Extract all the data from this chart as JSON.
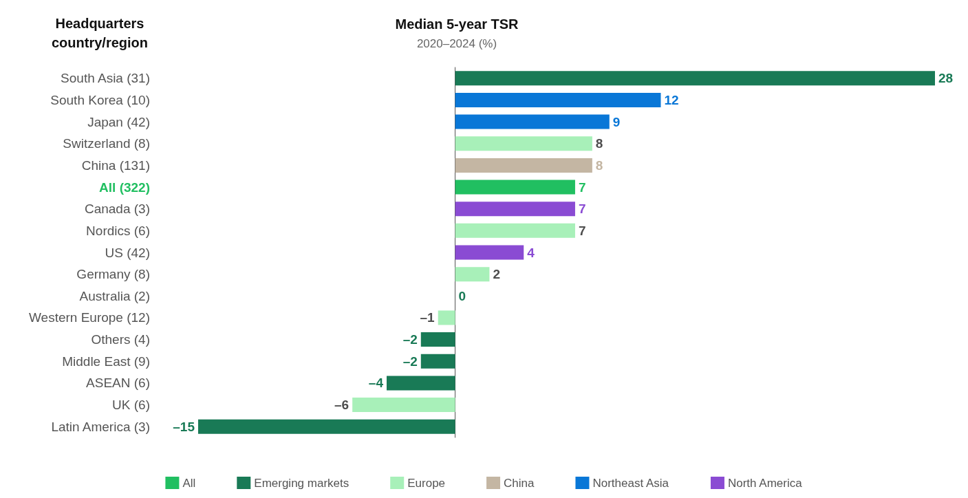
{
  "chart_data": {
    "type": "bar",
    "orientation": "horizontal",
    "title": "Median 5-year TSR",
    "subtitle": "2020–2024 (%)",
    "ylabel": "Headquarters country/region",
    "categories": [
      "South Asia (31)",
      "South Korea (10)",
      "Japan (42)",
      "Switzerland (8)",
      "China (131)",
      "All (322)",
      "Canada (3)",
      "Nordics (6)",
      "US (42)",
      "Germany (8)",
      "Australia (2)",
      "Western Europe (12)",
      "Others (4)",
      "Middle East (9)",
      "ASEAN (6)",
      "UK (6)",
      "Latin America (3)"
    ],
    "series": [
      {
        "name": "All",
        "color": "#21bf61",
        "values": [
          null,
          null,
          null,
          null,
          null,
          7,
          null,
          null,
          null,
          null,
          null,
          null,
          null,
          null,
          null,
          null,
          null
        ],
        "value_labels": [
          null,
          null,
          null,
          null,
          null,
          "7",
          null,
          null,
          null,
          null,
          null,
          null,
          null,
          null,
          null,
          null,
          null
        ]
      },
      {
        "name": "Emerging markets",
        "color": "#197a56",
        "values": [
          28,
          null,
          null,
          null,
          null,
          null,
          null,
          null,
          null,
          null,
          0,
          null,
          -2,
          -2,
          -4,
          null,
          -15
        ],
        "value_labels": [
          "28",
          null,
          null,
          null,
          null,
          null,
          null,
          null,
          null,
          null,
          "0",
          null,
          "–2",
          "–2",
          "–4",
          null,
          "–15"
        ]
      },
      {
        "name": "Europe",
        "color": "#a8f0b9",
        "values": [
          null,
          null,
          null,
          8,
          null,
          null,
          null,
          7,
          null,
          2,
          null,
          -1,
          null,
          null,
          null,
          -6,
          null
        ],
        "value_labels": [
          null,
          null,
          null,
          "8",
          null,
          null,
          null,
          "7",
          null,
          "2",
          null,
          "–1",
          null,
          null,
          null,
          "–6",
          null
        ]
      },
      {
        "name": "China",
        "color": "#c4b6a3",
        "values": [
          null,
          null,
          null,
          null,
          8,
          null,
          null,
          null,
          null,
          null,
          null,
          null,
          null,
          null,
          null,
          null,
          null
        ],
        "value_labels": [
          null,
          null,
          null,
          null,
          "8",
          null,
          null,
          null,
          null,
          null,
          null,
          null,
          null,
          null,
          null,
          null,
          null
        ]
      },
      {
        "name": "Northeast Asia",
        "color": "#0977d7",
        "values": [
          null,
          12,
          9,
          null,
          null,
          null,
          null,
          null,
          null,
          null,
          null,
          null,
          null,
          null,
          null,
          null,
          null
        ],
        "value_labels": [
          null,
          "12",
          "9",
          null,
          null,
          null,
          null,
          null,
          null,
          null,
          null,
          null,
          null,
          null,
          null,
          null,
          null
        ]
      },
      {
        "name": "North America",
        "color": "#8a4bd3",
        "values": [
          null,
          null,
          null,
          null,
          null,
          null,
          7,
          null,
          4,
          null,
          null,
          null,
          null,
          null,
          null,
          null,
          null
        ],
        "value_labels": [
          null,
          null,
          null,
          null,
          null,
          null,
          "7",
          null,
          "4",
          null,
          null,
          null,
          null,
          null,
          null,
          null,
          null
        ]
      }
    ],
    "legend": "bottom"
  }
}
